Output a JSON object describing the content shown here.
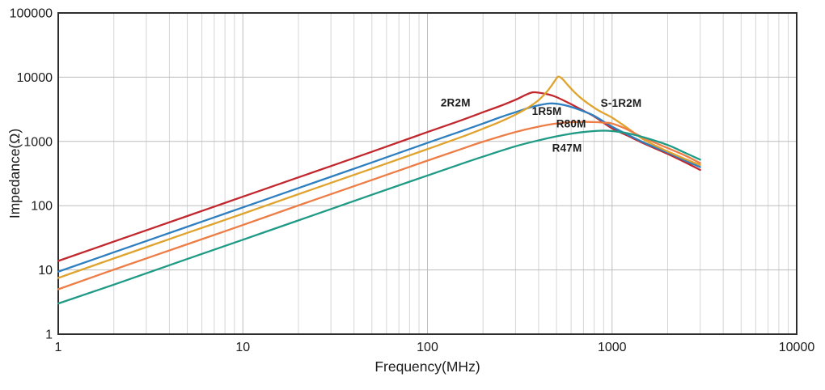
{
  "chart_data": {
    "type": "line",
    "title": "",
    "xlabel": "Frequency(MHz)",
    "ylabel": "Impedance(Ω)",
    "x_axis": {
      "label": "Frequency(MHz)",
      "scale": "log",
      "range": [
        1,
        10000
      ],
      "ticks": [
        1,
        10,
        100,
        1000,
        10000
      ],
      "tick_labels": [
        "1",
        "10",
        "100",
        "1000",
        "10000"
      ],
      "minor_grid": true
    },
    "y_axis": {
      "label": "Impedance(Ω)",
      "scale": "log",
      "range": [
        1,
        100000
      ],
      "ticks": [
        1,
        10,
        100,
        1000,
        10000,
        100000
      ],
      "tick_labels": [
        "1",
        "10",
        "100",
        "1000",
        "10000",
        "100000"
      ],
      "minor_grid": false
    },
    "grid": true,
    "legend_position": "inline-annotations",
    "series": [
      {
        "name": "2R2M",
        "color": "#c1272d",
        "label_anchor": {
          "x": 142,
          "y": 3500
        },
        "points": [
          [
            1,
            13.8
          ],
          [
            2,
            27.6
          ],
          [
            5,
            69
          ],
          [
            10,
            138
          ],
          [
            20,
            276
          ],
          [
            50,
            690
          ],
          [
            100,
            1400
          ],
          [
            150,
            2100
          ],
          [
            200,
            2850
          ],
          [
            250,
            3600
          ],
          [
            300,
            4450
          ],
          [
            340,
            5300
          ],
          [
            370,
            5800
          ],
          [
            400,
            5750
          ],
          [
            450,
            5400
          ],
          [
            500,
            4900
          ],
          [
            600,
            3800
          ],
          [
            700,
            3000
          ],
          [
            800,
            2450
          ],
          [
            1000,
            1600
          ],
          [
            1200,
            1250
          ],
          [
            1500,
            920
          ],
          [
            2000,
            640
          ],
          [
            2500,
            470
          ],
          [
            3000,
            360
          ]
        ]
      },
      {
        "name": "1R5M",
        "color": "#2e7fc0",
        "label_anchor": {
          "x": 443,
          "y": 2590
        },
        "points": [
          [
            1,
            9.4
          ],
          [
            2,
            18.8
          ],
          [
            5,
            47
          ],
          [
            10,
            94
          ],
          [
            20,
            188
          ],
          [
            50,
            470
          ],
          [
            100,
            950
          ],
          [
            150,
            1420
          ],
          [
            200,
            1900
          ],
          [
            250,
            2400
          ],
          [
            300,
            2850
          ],
          [
            350,
            3300
          ],
          [
            400,
            3650
          ],
          [
            460,
            3900
          ],
          [
            520,
            3800
          ],
          [
            600,
            3450
          ],
          [
            700,
            2950
          ],
          [
            800,
            2500
          ],
          [
            1000,
            1700
          ],
          [
            1200,
            1300
          ],
          [
            1500,
            950
          ],
          [
            2000,
            670
          ],
          [
            2500,
            500
          ],
          [
            3000,
            400
          ]
        ]
      },
      {
        "name": "S-1R2M",
        "color": "#e0a32e",
        "label_anchor": {
          "x": 1120,
          "y": 3460
        },
        "points": [
          [
            1,
            7.5
          ],
          [
            2,
            15.1
          ],
          [
            5,
            37.7
          ],
          [
            10,
            75
          ],
          [
            20,
            151
          ],
          [
            50,
            377
          ],
          [
            100,
            760
          ],
          [
            150,
            1150
          ],
          [
            200,
            1580
          ],
          [
            250,
            2050
          ],
          [
            300,
            2620
          ],
          [
            350,
            3350
          ],
          [
            400,
            4400
          ],
          [
            440,
            5800
          ],
          [
            470,
            7400
          ],
          [
            500,
            9600
          ],
          [
            515,
            10200
          ],
          [
            540,
            9300
          ],
          [
            570,
            7800
          ],
          [
            620,
            6000
          ],
          [
            680,
            4700
          ],
          [
            750,
            3800
          ],
          [
            850,
            3000
          ],
          [
            1000,
            2350
          ],
          [
            1200,
            1650
          ],
          [
            1500,
            1050
          ],
          [
            2000,
            700
          ],
          [
            2500,
            530
          ],
          [
            3000,
            430
          ]
        ]
      },
      {
        "name": "R80M",
        "color": "#ed7d45",
        "label_anchor": {
          "x": 600,
          "y": 1650
        },
        "points": [
          [
            1,
            5.0
          ],
          [
            2,
            10.1
          ],
          [
            5,
            25.1
          ],
          [
            10,
            50
          ],
          [
            20,
            101
          ],
          [
            50,
            251
          ],
          [
            100,
            503
          ],
          [
            150,
            750
          ],
          [
            200,
            990
          ],
          [
            300,
            1400
          ],
          [
            400,
            1700
          ],
          [
            500,
            1900
          ],
          [
            600,
            1990
          ],
          [
            700,
            2020
          ],
          [
            800,
            2000
          ],
          [
            900,
            1960
          ],
          [
            1000,
            1900
          ],
          [
            1200,
            1550
          ],
          [
            1500,
            1120
          ],
          [
            2000,
            790
          ],
          [
            2500,
            600
          ],
          [
            3000,
            460
          ]
        ]
      },
      {
        "name": "R47M",
        "color": "#1f9a85",
        "label_anchor": {
          "x": 570,
          "y": 690
        },
        "points": [
          [
            1,
            3.0
          ],
          [
            2,
            5.9
          ],
          [
            5,
            14.8
          ],
          [
            10,
            29.5
          ],
          [
            20,
            59
          ],
          [
            50,
            148
          ],
          [
            100,
            295
          ],
          [
            150,
            440
          ],
          [
            200,
            580
          ],
          [
            300,
            840
          ],
          [
            400,
            1040
          ],
          [
            500,
            1200
          ],
          [
            600,
            1320
          ],
          [
            700,
            1400
          ],
          [
            800,
            1450
          ],
          [
            900,
            1470
          ],
          [
            1000,
            1450
          ],
          [
            1200,
            1350
          ],
          [
            1500,
            1150
          ],
          [
            2000,
            880
          ],
          [
            2500,
            660
          ],
          [
            3000,
            520
          ]
        ]
      }
    ]
  }
}
